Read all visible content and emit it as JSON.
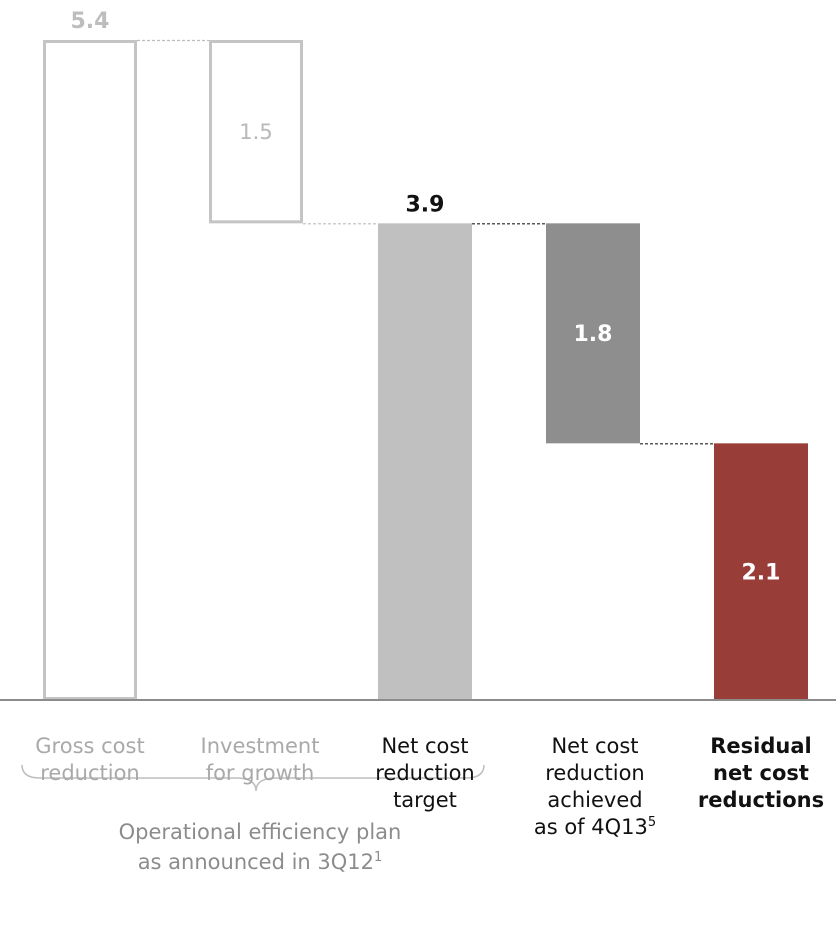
{
  "chart_data": {
    "type": "bar",
    "subtype": "waterfall",
    "categories": [
      "Gross cost\nreduction",
      "Investment\nfor growth",
      "Net cost\nreduction\ntarget",
      "Net cost\nreduction\nachieved\nas of 4Q13",
      "Residual\nnet cost\nreductions"
    ],
    "bars": [
      {
        "category": "Gross cost reduction",
        "value": 5.4,
        "base": 0,
        "label": "5.4",
        "style": "outline",
        "color": "#c4c4c4",
        "label_color": "#bdbdbd",
        "label_position": "above"
      },
      {
        "category": "Investment for growth",
        "value": 1.5,
        "base": 3.9,
        "label": "1.5",
        "style": "outline",
        "color": "#c4c4c4",
        "label_color": "#b8b8b8",
        "label_position": "inside"
      },
      {
        "category": "Net cost reduction target",
        "value": 3.9,
        "base": 0,
        "label": "3.9",
        "style": "filled",
        "color": "#c0c0c0",
        "label_color": "#111111",
        "label_position": "above"
      },
      {
        "category": "Net cost reduction achieved as of 4Q13",
        "value": 1.8,
        "base": 2.1,
        "label": "1.8",
        "style": "filled",
        "color": "#8e8e8e",
        "label_color": "#ffffff",
        "label_position": "inside"
      },
      {
        "category": "Residual net cost reductions",
        "value": 2.1,
        "base": 0,
        "label": "2.1",
        "style": "filled",
        "color": "#993d38",
        "label_color": "#ffffff",
        "label_position": "inside"
      }
    ],
    "ylim": [
      0,
      5.4
    ],
    "grid": false,
    "legend": "none"
  },
  "labels": {
    "cat1": "Gross cost\nreduction",
    "cat2": "Investment\nfor growth",
    "cat3": "Net cost\nreduction\ntarget",
    "cat4": "Net cost\nreduction\nachieved\nas of 4Q13",
    "cat4_sup": "5",
    "cat5": "Residual\nnet cost\nreductions",
    "group": "Operational efficiency plan\nas announced in 3Q12",
    "group_sup": "1"
  }
}
